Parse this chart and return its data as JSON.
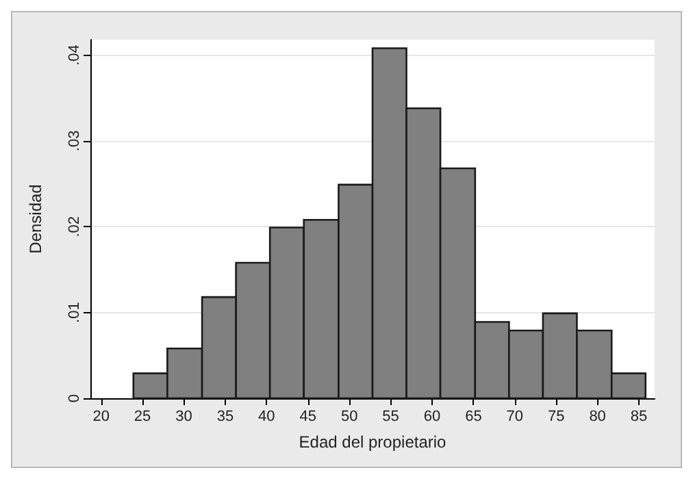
{
  "chart_data": {
    "type": "histogram",
    "xlabel": "Edad del propietario",
    "ylabel": "Densidad",
    "color": "#808080",
    "bins": [
      23.9,
      28.0,
      32.2,
      36.3,
      40.4,
      44.5,
      48.7,
      52.8,
      56.9,
      61.0,
      65.2,
      69.3,
      73.4,
      77.5,
      81.7,
      85.8
    ],
    "values": [
      0.0029,
      0.0058,
      0.0118,
      0.0158,
      0.0199,
      0.0208,
      0.0249,
      0.0408,
      0.0338,
      0.0268,
      0.0089,
      0.0079,
      0.0099,
      0.0079,
      0.0029
    ],
    "xlim": [
      18.7,
      86.9
    ],
    "xticks": [
      20,
      25,
      30,
      35,
      40,
      45,
      50,
      55,
      60,
      65,
      70,
      75,
      80,
      85
    ],
    "ylim": [
      0,
      0.0418
    ],
    "yticks": [
      0,
      {
        "value": 0.01,
        "label": ".01"
      },
      {
        "value": 0.02,
        "label": ".02"
      },
      {
        "value": 0.03,
        "label": ".03"
      },
      {
        "value": 0.04,
        "label": ".04"
      }
    ],
    "grid": "y"
  }
}
